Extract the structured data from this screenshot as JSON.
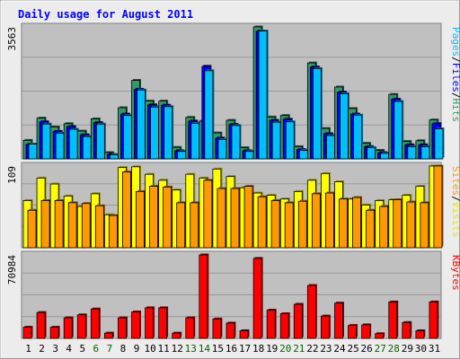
{
  "chart_data": {
    "type": "bar",
    "title": "Daily usage for August 2011",
    "categories": [
      "1",
      "2",
      "3",
      "4",
      "5",
      "6",
      "7",
      "8",
      "9",
      "10",
      "11",
      "12",
      "13",
      "14",
      "15",
      "16",
      "17",
      "18",
      "19",
      "20",
      "21",
      "22",
      "23",
      "24",
      "25",
      "26",
      "27",
      "28",
      "29",
      "30",
      "31"
    ],
    "weekend_categories": [
      "6",
      "7",
      "13",
      "14",
      "20",
      "21",
      "27",
      "28"
    ],
    "panels": [
      {
        "id": "hits",
        "axis_max_label": "3563",
        "ylim": [
          0,
          3563
        ],
        "right_label_parts": [
          "Pages",
          "/",
          "Files",
          "/",
          "Hits"
        ],
        "series": [
          {
            "name": "Hits",
            "color": "#339966",
            "values": [
              500,
              1100,
              860,
              950,
              750,
              1080,
              170,
              1380,
              2120,
              1560,
              1560,
              310,
              1120,
              1020,
              700,
              1040,
              300,
              3563,
              1130,
              1170,
              330,
              2590,
              820,
              1940,
              1360,
              420,
              230,
              1740,
              470,
              490,
              1050
            ]
          },
          {
            "name": "Files",
            "color": "#0000ff",
            "values": [
              390,
              1000,
              740,
              870,
              650,
              980,
              120,
              1210,
              1880,
              1460,
              1450,
              220,
              1020,
              2500,
              560,
              930,
              220,
              3450,
              1040,
              1070,
              250,
              2480,
              680,
              1800,
              1210,
              330,
              170,
              1610,
              380,
              380,
              950
            ]
          },
          {
            "name": "Pages",
            "color": "#00bfff",
            "values": [
              400,
              940,
              690,
              800,
              600,
              940,
              110,
              1170,
              1860,
              1400,
              1410,
              200,
              960,
              2380,
              520,
              900,
              200,
              3450,
              990,
              1000,
              230,
              2440,
              630,
              1760,
              1180,
              300,
              150,
              1550,
              330,
              330,
              810
            ]
          }
        ]
      },
      {
        "id": "visits",
        "axis_max_label": "109",
        "ylim": [
          0,
          109
        ],
        "right_label_parts": [
          "Sites",
          "/",
          "Visits"
        ],
        "series": [
          {
            "name": "Visits",
            "color": "#ffff00",
            "values": [
              63,
              93,
              85,
              69,
              55,
              72,
              44,
              107,
              108,
              98,
              90,
              77,
              98,
              93,
              105,
              95,
              80,
              73,
              70,
              65,
              75,
              90,
              99,
              88,
              65,
              57,
              63,
              64,
              70,
              82,
              109
            ]
          },
          {
            "name": "Sites",
            "color": "#ff9900",
            "values": [
              50,
              63,
              63,
              60,
              59,
              56,
              43,
              101,
              75,
              82,
              81,
              60,
              60,
              90,
              79,
              79,
              82,
              68,
              63,
              60,
              62,
              72,
              73,
              65,
              67,
              50,
              55,
              64,
              61,
              60,
              109
            ]
          }
        ]
      },
      {
        "id": "kbytes",
        "axis_max_label": "70984",
        "ylim": [
          0,
          70984
        ],
        "right_label_parts": [
          "KBytes"
        ],
        "series": [
          {
            "name": "KBytes",
            "color": "#ff0000",
            "values": [
              9500,
              22000,
              9500,
              17500,
              20000,
              25000,
              4500,
              17500,
              22500,
              26000,
              26000,
              4500,
              17500,
              70984,
              16500,
              13000,
              6500,
              68000,
              24000,
              21000,
              29000,
              45000,
              19000,
              30000,
              11000,
              11500,
              4000,
              31000,
              13500,
              6500,
              31000
            ]
          }
        ]
      }
    ]
  },
  "colors": {
    "background": "#ececec",
    "plot_background": "#c0c0c0",
    "title": "#0000ff",
    "weekday_label": "#000000",
    "weekend_label": "#006400",
    "pages_label": "#00bfff",
    "files_label": "#0000ff",
    "hits_label": "#339966",
    "sites_label": "#ff9900",
    "visits_label": "#e6e600",
    "kbytes_label": "#ff0000"
  }
}
